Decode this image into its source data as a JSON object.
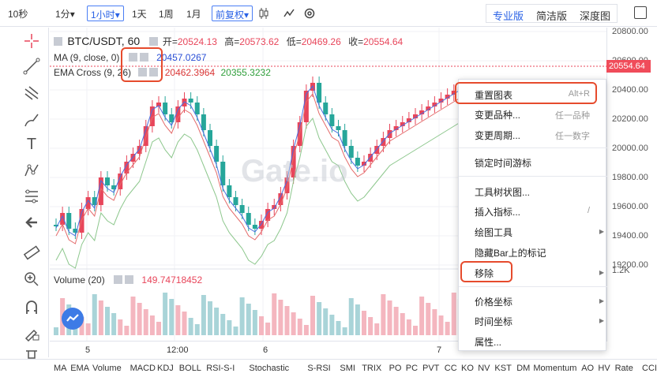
{
  "toolbar": {
    "intervals": [
      "10秒",
      "1分",
      "1小时",
      "1天",
      "1周",
      "1月"
    ],
    "interval_dropdown_marker": "▾",
    "adjust": "前复权",
    "views": [
      "专业版",
      "简洁版",
      "深度图"
    ]
  },
  "legend": {
    "symbol": "BTC/USDT, 60",
    "open_label": "开=",
    "open": "20524.13",
    "high_label": "高=",
    "high": "20573.62",
    "low_label": "低=",
    "low": "20469.26",
    "close_label": "收=",
    "close": "20554.64",
    "ma_label": "MA (9, close, 0)",
    "ma_value": "20457.0267",
    "ema_label": "EMA Cross (9, 26)",
    "ema_value1": "20462.3964",
    "ema_value2": "20355.3232",
    "volume_label": "Volume (20)",
    "volume_value": "149.74718452"
  },
  "price_axis": {
    "labels": [
      "20800.00",
      "20600.00",
      "20400.00",
      "20200.00",
      "20000.00",
      "19800.00",
      "19600.00",
      "19400.00",
      "19200.00"
    ],
    "last_price": "20554.64",
    "volume_tick": "1.2K"
  },
  "time_axis": [
    "5",
    "12:00",
    "6",
    "7"
  ],
  "watermark": "Gate.io",
  "indicators": [
    "MA",
    "EMA",
    "Volume",
    "MACD",
    "KDJ",
    "BOLL",
    "RSI-S-I",
    "Stochastic",
    "S-RSI",
    "SMI",
    "TRIX",
    "PO",
    "PC",
    "PVT",
    "CC",
    "KO",
    "NV",
    "KST",
    "DM",
    "Momentum",
    "AO",
    "HV",
    "Rate",
    "CCI"
  ],
  "context_menu": {
    "items": [
      {
        "label": "重置图表",
        "shortcut": "Alt+R"
      },
      {
        "label": "变更品种...",
        "shortcut": "任一品种"
      },
      {
        "label": "变更周期...",
        "shortcut": "任一数字"
      },
      {
        "label": "锁定时间游标",
        "shortcut": ""
      },
      {
        "label": "工具树状图...",
        "shortcut": ""
      },
      {
        "label": "插入指标...",
        "shortcut": "/"
      },
      {
        "label": "绘图工具",
        "shortcut": ""
      },
      {
        "label": "隐藏Bar上的标记",
        "shortcut": ""
      },
      {
        "label": "移除",
        "shortcut": ""
      },
      {
        "label": "价格坐标",
        "shortcut": ""
      },
      {
        "label": "时间坐标",
        "shortcut": ""
      },
      {
        "label": "属性...",
        "shortcut": ""
      }
    ]
  },
  "colors": {
    "up": "#e8455a",
    "down": "#26a69a",
    "accent": "#2a62e6",
    "highlight": "#e64b2d"
  }
}
